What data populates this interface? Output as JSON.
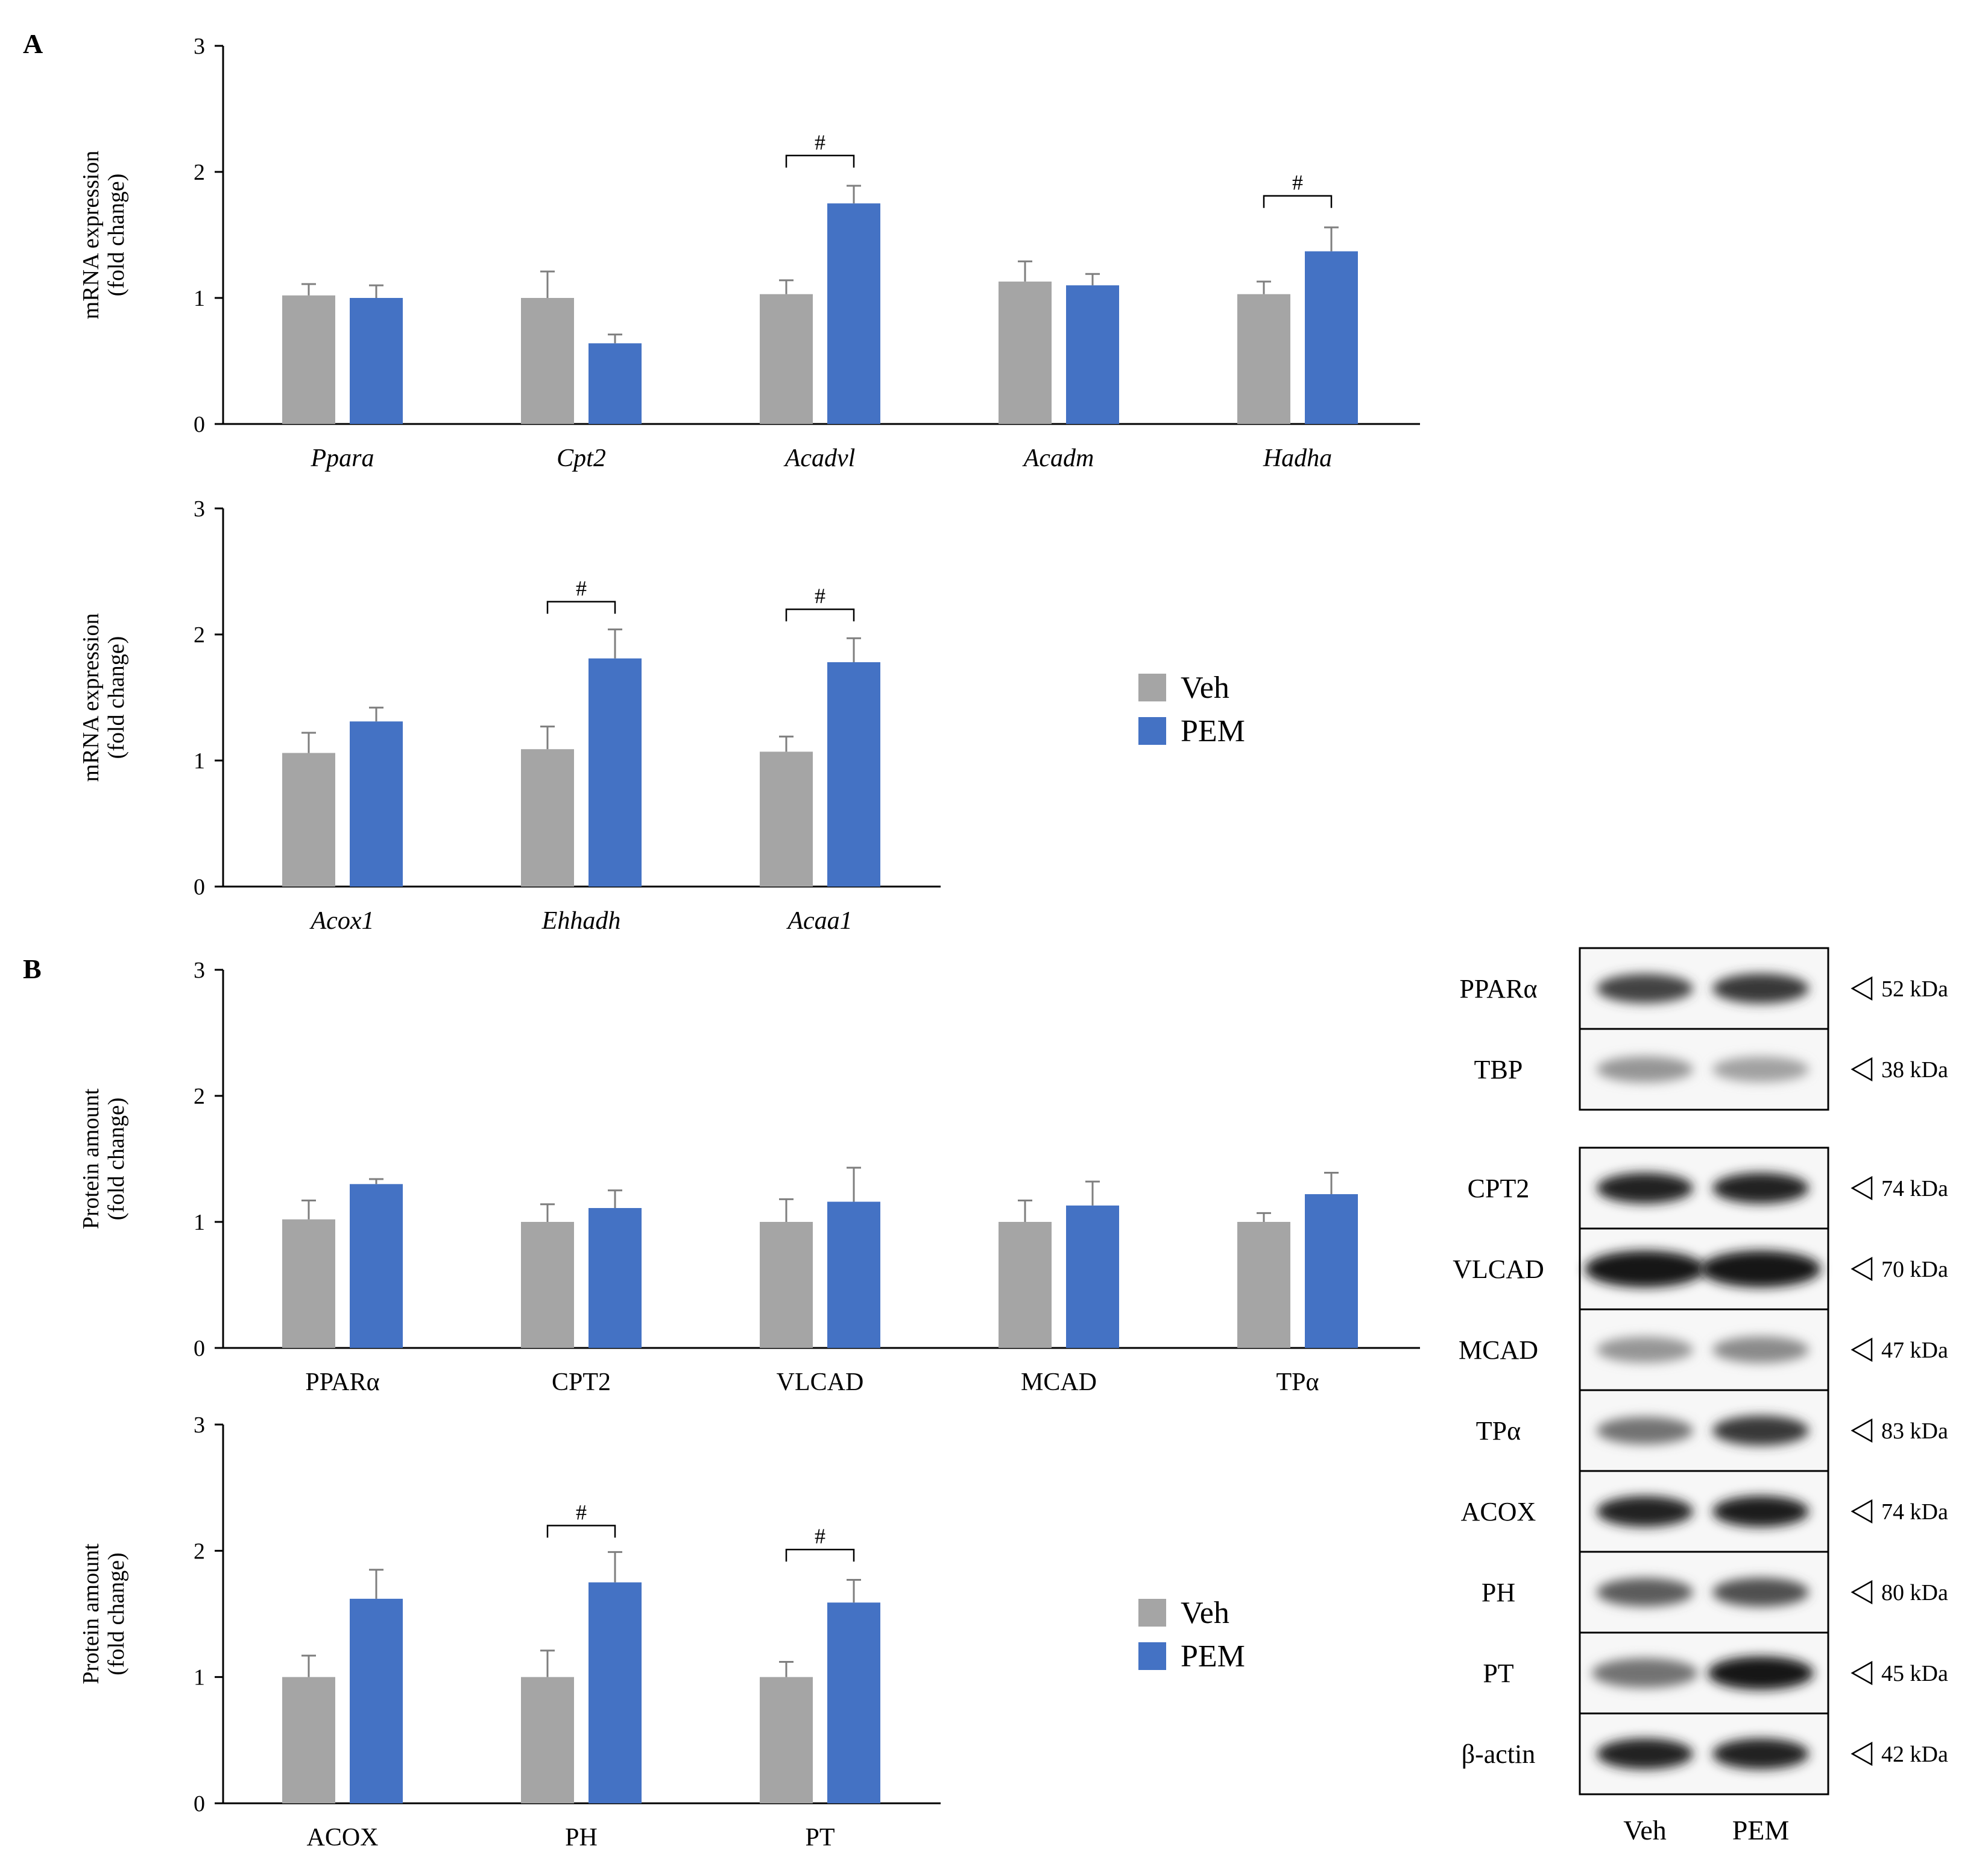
{
  "panels": {
    "a": {
      "letter": "A"
    },
    "b": {
      "letter": "B"
    }
  },
  "legend": {
    "items": [
      {
        "label": "Veh",
        "color": "#a5a5a5"
      },
      {
        "label": "PEM",
        "color": "#4472c4"
      }
    ]
  },
  "colors": {
    "veh": "#a5a5a5",
    "pem": "#4472c4",
    "axis": "#000000"
  },
  "significance_symbol": "#",
  "chart_data": [
    {
      "id": "A1",
      "type": "bar",
      "panel": "A",
      "ylabel": [
        "mRNA expression",
        "(fold change)"
      ],
      "ylim": [
        0,
        3
      ],
      "yticks": [
        0,
        1,
        2,
        3
      ],
      "italic_categories": true,
      "categories": [
        "Ppara",
        "Cpt2",
        "Acadvl",
        "Acadm",
        "Hadha"
      ],
      "series": [
        {
          "name": "Veh",
          "values": [
            1.02,
            1.0,
            1.03,
            1.13,
            1.03
          ],
          "errors": [
            0.09,
            0.21,
            0.11,
            0.16,
            0.1
          ]
        },
        {
          "name": "PEM",
          "values": [
            1.0,
            0.64,
            1.75,
            1.1,
            1.37
          ],
          "errors": [
            0.1,
            0.07,
            0.14,
            0.09,
            0.19
          ]
        }
      ],
      "significance": [
        {
          "category": "Acadvl",
          "label": "#",
          "level": 2.13
        },
        {
          "category": "Hadha",
          "label": "#",
          "level": 1.81
        }
      ]
    },
    {
      "id": "A2",
      "type": "bar",
      "panel": "A",
      "ylabel": [
        "mRNA expression",
        "(fold change)"
      ],
      "ylim": [
        0,
        3
      ],
      "yticks": [
        0,
        1,
        2,
        3
      ],
      "italic_categories": true,
      "categories": [
        "Acox1",
        "Ehhadh",
        "Acaa1"
      ],
      "series": [
        {
          "name": "Veh",
          "values": [
            1.06,
            1.09,
            1.07
          ],
          "errors": [
            0.16,
            0.18,
            0.12
          ]
        },
        {
          "name": "PEM",
          "values": [
            1.31,
            1.81,
            1.78
          ],
          "errors": [
            0.11,
            0.23,
            0.19
          ]
        }
      ],
      "significance": [
        {
          "category": "Ehhadh",
          "label": "#",
          "level": 2.26
        },
        {
          "category": "Acaa1",
          "label": "#",
          "level": 2.2
        }
      ]
    },
    {
      "id": "B1",
      "type": "bar",
      "panel": "B",
      "ylabel": [
        "Protein amount",
        "(fold change)"
      ],
      "ylim": [
        0,
        3
      ],
      "yticks": [
        0,
        1,
        2,
        3
      ],
      "italic_categories": false,
      "categories": [
        "PPARα",
        "CPT2",
        "VLCAD",
        "MCAD",
        "TPα"
      ],
      "series": [
        {
          "name": "Veh",
          "values": [
            1.02,
            1.0,
            1.0,
            1.0,
            1.0
          ],
          "errors": [
            0.15,
            0.14,
            0.18,
            0.17,
            0.07
          ]
        },
        {
          "name": "PEM",
          "values": [
            1.3,
            1.11,
            1.16,
            1.13,
            1.22
          ],
          "errors": [
            0.04,
            0.14,
            0.27,
            0.19,
            0.17
          ]
        }
      ],
      "significance": []
    },
    {
      "id": "B2",
      "type": "bar",
      "panel": "B",
      "ylabel": [
        "Protein amount",
        "(fold change)"
      ],
      "ylim": [
        0,
        3
      ],
      "yticks": [
        0,
        1,
        2,
        3
      ],
      "italic_categories": false,
      "categories": [
        "ACOX",
        "PH",
        "PT"
      ],
      "series": [
        {
          "name": "Veh",
          "values": [
            1.0,
            1.0,
            1.0
          ],
          "errors": [
            0.17,
            0.21,
            0.12
          ]
        },
        {
          "name": "PEM",
          "values": [
            1.62,
            1.75,
            1.59
          ],
          "errors": [
            0.23,
            0.24,
            0.18
          ]
        }
      ],
      "significance": [
        {
          "category": "PH",
          "label": "#",
          "level": 2.2
        },
        {
          "category": "PT",
          "label": "#",
          "level": 2.01
        }
      ]
    }
  ],
  "western_blot": {
    "lane_labels": [
      "Veh",
      "PEM"
    ],
    "bands": [
      {
        "protein": "PPARα",
        "kda": "52 kDa",
        "intensity": [
          0.8,
          0.85
        ],
        "width_factor": 1.0,
        "group": 0
      },
      {
        "protein": "TBP",
        "kda": "38 kDa",
        "intensity": [
          0.45,
          0.4
        ],
        "width_factor": 1.0,
        "group": 0
      },
      {
        "protein": "CPT2",
        "kda": "74 kDa",
        "intensity": [
          0.95,
          0.95
        ],
        "width_factor": 1.0,
        "group": 1
      },
      {
        "protein": "VLCAD",
        "kda": "70 kDa",
        "intensity": [
          1.0,
          1.0
        ],
        "width_factor": 1.25,
        "group": 1
      },
      {
        "protein": "MCAD",
        "kda": "47 kDa",
        "intensity": [
          0.45,
          0.5
        ],
        "width_factor": 1.0,
        "group": 1
      },
      {
        "protein": "TPα",
        "kda": "83 kDa",
        "intensity": [
          0.6,
          0.85
        ],
        "width_factor": 1.0,
        "group": 1
      },
      {
        "protein": "ACOX",
        "kda": "74 kDa",
        "intensity": [
          0.95,
          0.97
        ],
        "width_factor": 1.0,
        "group": 1
      },
      {
        "protein": "PH",
        "kda": "80 kDa",
        "intensity": [
          0.7,
          0.75
        ],
        "width_factor": 1.0,
        "group": 1
      },
      {
        "protein": "PT",
        "kda": "45 kDa",
        "intensity": [
          0.6,
          1.0
        ],
        "width_factor": 1.1,
        "group": 1
      },
      {
        "protein": "β-actin",
        "kda": "42 kDa",
        "intensity": [
          0.95,
          0.95
        ],
        "width_factor": 1.0,
        "group": 1
      }
    ]
  }
}
